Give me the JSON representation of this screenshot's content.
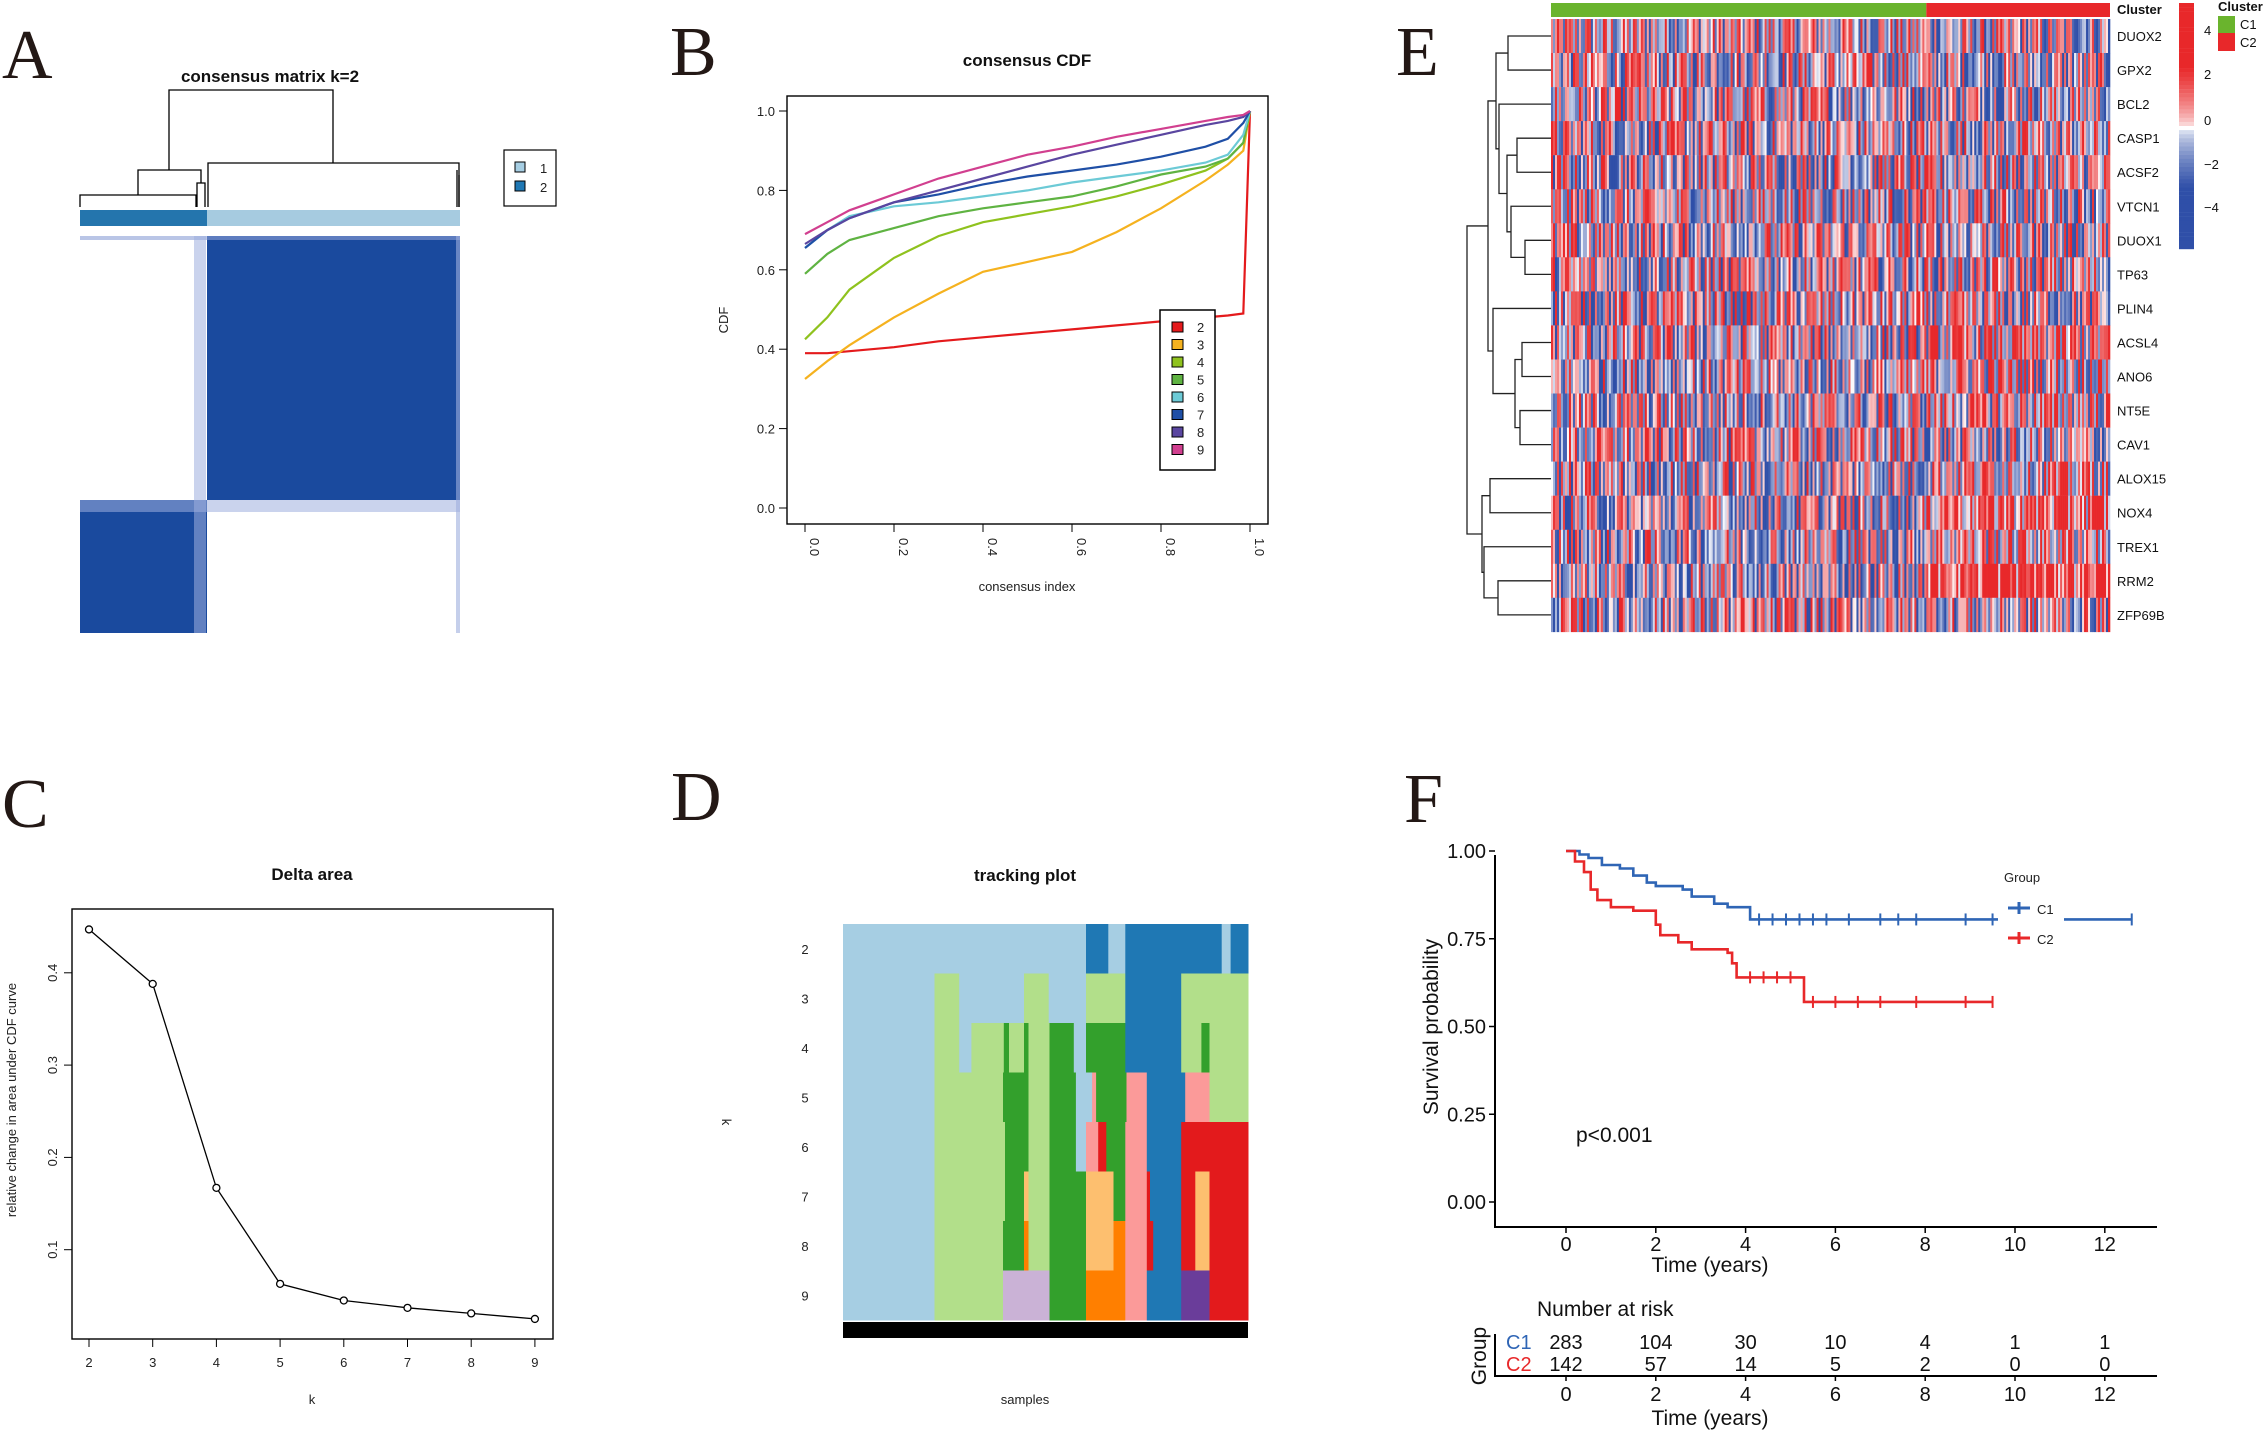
{
  "panel_labels": {
    "a": "A",
    "b": "B",
    "c": "C",
    "d": "D",
    "e": "E",
    "f": "F"
  },
  "chart_data": [
    {
      "type": "heatmap",
      "title": "consensus matrix k=2",
      "legend": [
        {
          "label": "1",
          "color": "#a6cee3"
        },
        {
          "label": "2",
          "color": "#1f78b4"
        }
      ],
      "cluster_fractions": {
        "cluster2": 0.33,
        "cluster1": 0.67
      },
      "matrix_color": "#1a4a9e"
    },
    {
      "type": "line",
      "title": "consensus CDF",
      "xlabel": "consensus index",
      "ylabel": "CDF",
      "xlim": [
        0,
        1
      ],
      "ylim": [
        0,
        1
      ],
      "xticks": [
        "0.0",
        "0.2",
        "0.4",
        "0.6",
        "0.8",
        "1.0"
      ],
      "yticks": [
        "0.0",
        "0.2",
        "0.4",
        "0.6",
        "0.8",
        "1.0"
      ],
      "legend_position": "bottom-right",
      "x": [
        0,
        0.05,
        0.1,
        0.2,
        0.3,
        0.4,
        0.5,
        0.6,
        0.7,
        0.8,
        0.9,
        0.95,
        0.985,
        1.0
      ],
      "series": [
        {
          "name": "2",
          "color": "#e41a1c",
          "values": [
            0.39,
            0.39,
            0.395,
            0.405,
            0.42,
            0.43,
            0.44,
            0.45,
            0.46,
            0.47,
            0.48,
            0.485,
            0.49,
            1.0
          ]
        },
        {
          "name": "3",
          "color": "#f5b21f",
          "values": [
            0.325,
            0.37,
            0.41,
            0.48,
            0.54,
            0.595,
            0.62,
            0.645,
            0.695,
            0.755,
            0.825,
            0.865,
            0.9,
            1.0
          ]
        },
        {
          "name": "4",
          "color": "#8fc21e",
          "values": [
            0.425,
            0.48,
            0.55,
            0.63,
            0.685,
            0.72,
            0.74,
            0.76,
            0.785,
            0.815,
            0.85,
            0.88,
            0.92,
            1.0
          ]
        },
        {
          "name": "5",
          "color": "#5fb342",
          "values": [
            0.59,
            0.64,
            0.675,
            0.705,
            0.735,
            0.755,
            0.77,
            0.785,
            0.81,
            0.84,
            0.86,
            0.88,
            0.92,
            1.0
          ]
        },
        {
          "name": "6",
          "color": "#6ccad6",
          "values": [
            0.655,
            0.7,
            0.735,
            0.76,
            0.77,
            0.785,
            0.8,
            0.82,
            0.835,
            0.85,
            0.87,
            0.89,
            0.94,
            1.0
          ]
        },
        {
          "name": "7",
          "color": "#1f4fa6",
          "values": [
            0.655,
            0.7,
            0.73,
            0.77,
            0.79,
            0.815,
            0.835,
            0.85,
            0.865,
            0.885,
            0.91,
            0.93,
            0.97,
            1.0
          ]
        },
        {
          "name": "8",
          "color": "#5a46a0",
          "values": [
            0.665,
            0.7,
            0.73,
            0.77,
            0.8,
            0.83,
            0.86,
            0.89,
            0.915,
            0.94,
            0.965,
            0.975,
            0.985,
            1.0
          ]
        },
        {
          "name": "9",
          "color": "#d13f8f",
          "values": [
            0.69,
            0.72,
            0.75,
            0.79,
            0.83,
            0.86,
            0.89,
            0.91,
            0.935,
            0.955,
            0.975,
            0.985,
            0.99,
            1.0
          ]
        }
      ]
    },
    {
      "type": "line",
      "title": "Delta area",
      "xlabel": "k",
      "ylabel": "relative change in area under CDF curve",
      "x": [
        2,
        3,
        4,
        5,
        6,
        7,
        8,
        9
      ],
      "xticks": [
        "2",
        "3",
        "4",
        "5",
        "6",
        "7",
        "8",
        "9"
      ],
      "yticks": [
        "0.1",
        "0.2",
        "0.3",
        "0.4"
      ],
      "values": [
        0.447,
        0.388,
        0.167,
        0.063,
        0.045,
        0.037,
        0.031,
        0.025
      ]
    },
    {
      "type": "heatmap",
      "title": "tracking plot",
      "xlabel": "samples",
      "ylabel": "k",
      "row_labels": [
        "2",
        "3",
        "4",
        "5",
        "6",
        "7",
        "8",
        "9"
      ],
      "palette": {
        "lb": "#a6cee3",
        "db": "#1f78b4",
        "lg": "#b2df8a",
        "dg": "#33a02c",
        "pk": "#fb9a99",
        "rd": "#e31a1c",
        "pc": "#fdbf6f",
        "or": "#ff7f00",
        "lv": "#cab2d6",
        "pu": "#6a3d9a"
      },
      "rows": [
        [
          [
            0,
            0.6,
            "lb"
          ],
          [
            0.6,
            0.655,
            "db"
          ],
          [
            0.655,
            0.697,
            "lb"
          ],
          [
            0.697,
            0.935,
            "db"
          ],
          [
            0.935,
            0.957,
            "lb"
          ],
          [
            0.957,
            1,
            "db"
          ]
        ],
        [
          [
            0,
            0.226,
            "lb"
          ],
          [
            0.226,
            0.287,
            "lg"
          ],
          [
            0.287,
            0.447,
            "lb"
          ],
          [
            0.447,
            0.508,
            "lg"
          ],
          [
            0.508,
            0.6,
            "lb"
          ],
          [
            0.6,
            0.697,
            "lg"
          ],
          [
            0.697,
            0.835,
            "db"
          ],
          [
            0.835,
            1,
            "lg"
          ]
        ],
        [
          [
            0,
            0.226,
            "lb"
          ],
          [
            0.226,
            0.287,
            "lg"
          ],
          [
            0.287,
            0.317,
            "lb"
          ],
          [
            0.317,
            0.397,
            "lg"
          ],
          [
            0.397,
            0.41,
            "dg"
          ],
          [
            0.41,
            0.447,
            "lg"
          ],
          [
            0.447,
            0.458,
            "dg"
          ],
          [
            0.458,
            0.51,
            "lg"
          ],
          [
            0.51,
            0.57,
            "dg"
          ],
          [
            0.57,
            0.6,
            "lb"
          ],
          [
            0.6,
            0.697,
            "dg"
          ],
          [
            0.697,
            0.835,
            "db"
          ],
          [
            0.835,
            0.885,
            "lg"
          ],
          [
            0.885,
            0.905,
            "dg"
          ],
          [
            0.905,
            1,
            "lg"
          ]
        ],
        [
          [
            0,
            0.226,
            "lb"
          ],
          [
            0.226,
            0.395,
            "lg"
          ],
          [
            0.395,
            0.458,
            "dg"
          ],
          [
            0.458,
            0.51,
            "lg"
          ],
          [
            0.51,
            0.575,
            "dg"
          ],
          [
            0.575,
            0.615,
            "lb"
          ],
          [
            0.615,
            0.625,
            "pk"
          ],
          [
            0.625,
            0.7,
            "dg"
          ],
          [
            0.7,
            0.75,
            "pk"
          ],
          [
            0.75,
            0.845,
            "db"
          ],
          [
            0.845,
            0.905,
            "pk"
          ],
          [
            0.905,
            1,
            "lg"
          ]
        ],
        [
          [
            0,
            0.226,
            "lb"
          ],
          [
            0.226,
            0.4,
            "lg"
          ],
          [
            0.4,
            0.458,
            "dg"
          ],
          [
            0.458,
            0.51,
            "lg"
          ],
          [
            0.51,
            0.575,
            "dg"
          ],
          [
            0.575,
            0.6,
            "lb"
          ],
          [
            0.6,
            0.63,
            "pk"
          ],
          [
            0.63,
            0.65,
            "rd"
          ],
          [
            0.65,
            0.697,
            "dg"
          ],
          [
            0.697,
            0.75,
            "pk"
          ],
          [
            0.75,
            0.835,
            "db"
          ],
          [
            0.835,
            1,
            "rd"
          ]
        ],
        [
          [
            0,
            0.226,
            "lb"
          ],
          [
            0.226,
            0.4,
            "lg"
          ],
          [
            0.4,
            0.447,
            "dg"
          ],
          [
            0.447,
            0.458,
            "pc"
          ],
          [
            0.458,
            0.51,
            "lg"
          ],
          [
            0.51,
            0.6,
            "dg"
          ],
          [
            0.6,
            0.668,
            "pc"
          ],
          [
            0.668,
            0.697,
            "dg"
          ],
          [
            0.697,
            0.75,
            "pk"
          ],
          [
            0.75,
            0.758,
            "rd"
          ],
          [
            0.758,
            0.835,
            "db"
          ],
          [
            0.835,
            0.87,
            "rd"
          ],
          [
            0.87,
            0.905,
            "pc"
          ],
          [
            0.905,
            1,
            "rd"
          ]
        ],
        [
          [
            0,
            0.226,
            "lb"
          ],
          [
            0.226,
            0.395,
            "lg"
          ],
          [
            0.395,
            0.447,
            "dg"
          ],
          [
            0.447,
            0.458,
            "or"
          ],
          [
            0.458,
            0.51,
            "lg"
          ],
          [
            0.51,
            0.6,
            "dg"
          ],
          [
            0.6,
            0.668,
            "pc"
          ],
          [
            0.668,
            0.697,
            "or"
          ],
          [
            0.697,
            0.75,
            "pk"
          ],
          [
            0.75,
            0.766,
            "rd"
          ],
          [
            0.766,
            0.835,
            "db"
          ],
          [
            0.835,
            0.87,
            "rd"
          ],
          [
            0.87,
            0.905,
            "pc"
          ],
          [
            0.905,
            1,
            "rd"
          ]
        ],
        [
          [
            0,
            0.226,
            "lb"
          ],
          [
            0.226,
            0.395,
            "lg"
          ],
          [
            0.395,
            0.51,
            "lv"
          ],
          [
            0.51,
            0.6,
            "dg"
          ],
          [
            0.6,
            0.697,
            "or"
          ],
          [
            0.697,
            0.75,
            "pk"
          ],
          [
            0.75,
            0.835,
            "db"
          ],
          [
            0.835,
            0.905,
            "pu"
          ],
          [
            0.905,
            1,
            "rd"
          ]
        ]
      ]
    },
    {
      "type": "heatmap",
      "annotation_title": "Cluster",
      "genes": [
        "DUOX2",
        "GPX2",
        "BCL2",
        "CASP1",
        "ACSF2",
        "VTCN1",
        "DUOX1",
        "TP63",
        "PLIN4",
        "ACSL4",
        "ANO6",
        "NT5E",
        "CAV1",
        "ALOX15",
        "NOX4",
        "TREX1",
        "RRM2",
        "ZFP69B"
      ],
      "clusters": [
        {
          "label": "C1",
          "color": "#6ab42d",
          "fraction": 0.67
        },
        {
          "label": "C2",
          "color": "#e8282a",
          "fraction": 0.33
        }
      ],
      "colorbar_ticks": [
        "4",
        "2",
        "0",
        "−2",
        "−4"
      ],
      "colorbar_range": [
        -5,
        5
      ],
      "low_color": "#2f4fa8",
      "mid_color": "#ffffff",
      "high_color": "#e8282a"
    },
    {
      "type": "line",
      "ylabel": "Survival probability",
      "xlabel": "Time (years)",
      "yticks": [
        "0.00",
        "0.25",
        "0.50",
        "0.75",
        "1.00"
      ],
      "xticks": [
        "0",
        "2",
        "4",
        "6",
        "8",
        "10",
        "12"
      ],
      "xlim": [
        0,
        12.6
      ],
      "ylim": [
        0,
        1
      ],
      "legend_title": "Group",
      "pvalue": "p<0.001",
      "series": [
        {
          "name": "C1",
          "color": "#2f65b5",
          "times": [
            0,
            0.3,
            0.5,
            0.8,
            1.2,
            1.5,
            1.8,
            2.0,
            2.6,
            2.8,
            3.3,
            3.6,
            4.1
          ],
          "survival": [
            1,
            0.99,
            0.98,
            0.96,
            0.95,
            0.93,
            0.91,
            0.9,
            0.89,
            0.87,
            0.85,
            0.84,
            0.805
          ],
          "end": 12.6,
          "censor": [
            4.3,
            4.6,
            4.9,
            5.2,
            5.5,
            5.8,
            6.3,
            7.0,
            7.4,
            7.8,
            8.9,
            9.5,
            12.6
          ]
        },
        {
          "name": "C2",
          "color": "#e8282a",
          "times": [
            0,
            0.2,
            0.4,
            0.55,
            0.7,
            1.0,
            1.5,
            2.0,
            2.1,
            2.5,
            2.8,
            3.6,
            3.7,
            3.8,
            5.3
          ],
          "survival": [
            1,
            0.97,
            0.94,
            0.89,
            0.86,
            0.84,
            0.83,
            0.79,
            0.76,
            0.74,
            0.72,
            0.71,
            0.68,
            0.64,
            0.57
          ],
          "end": 9.5,
          "censor": [
            4.1,
            4.4,
            4.7,
            5.0,
            5.5,
            6.0,
            6.5,
            7.0,
            7.8,
            8.9,
            9.5
          ]
        }
      ],
      "risk_table": {
        "title": "Number at risk",
        "ylabel": "Group",
        "xlabel": "Time (years)",
        "rows": [
          {
            "name": "C1",
            "values": [
              "283",
              "104",
              "30",
              "10",
              "4",
              "1",
              "1"
            ]
          },
          {
            "name": "C2",
            "values": [
              "142",
              "57",
              "14",
              "5",
              "2",
              "0",
              "0"
            ]
          }
        ]
      }
    }
  ]
}
